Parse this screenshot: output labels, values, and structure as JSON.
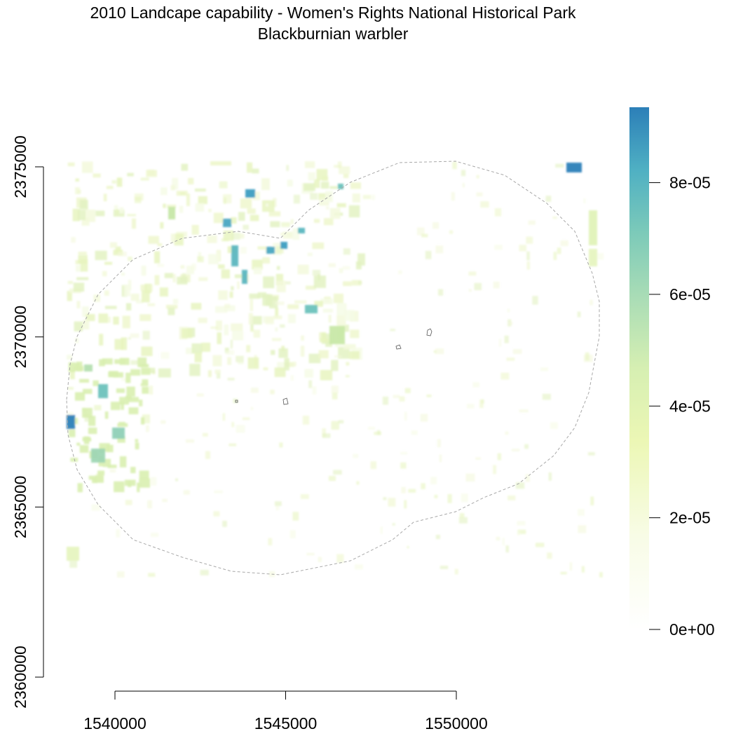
{
  "title": {
    "line1": "2010 Landcape capability - Women's Rights National Historical Park",
    "line2": "Blackburnian warbler"
  },
  "map": {
    "x_axis": {
      "ticks": [
        1540000,
        1545000,
        1550000
      ],
      "tick_labels": [
        "1540000",
        "1545000",
        "1550000"
      ]
    },
    "y_axis": {
      "ticks": [
        2360000,
        2365000,
        2370000,
        2375000
      ],
      "tick_labels": [
        "2360000",
        "2365000",
        "2370000",
        "2375000"
      ]
    },
    "legend": {
      "ticks": [
        0,
        2e-05,
        4e-05,
        6e-05,
        8e-05
      ],
      "tick_labels": [
        "0e+00",
        "2e-05",
        "4e-05",
        "6e-05",
        "8e-05"
      ],
      "colors": [
        "#ffffff",
        "#f6fbdf",
        "#ecf7b5",
        "#d6efb2",
        "#a8dcb6",
        "#7ccab9",
        "#4fb0c3",
        "#3492c0",
        "#2c7fb8"
      ]
    }
  }
}
